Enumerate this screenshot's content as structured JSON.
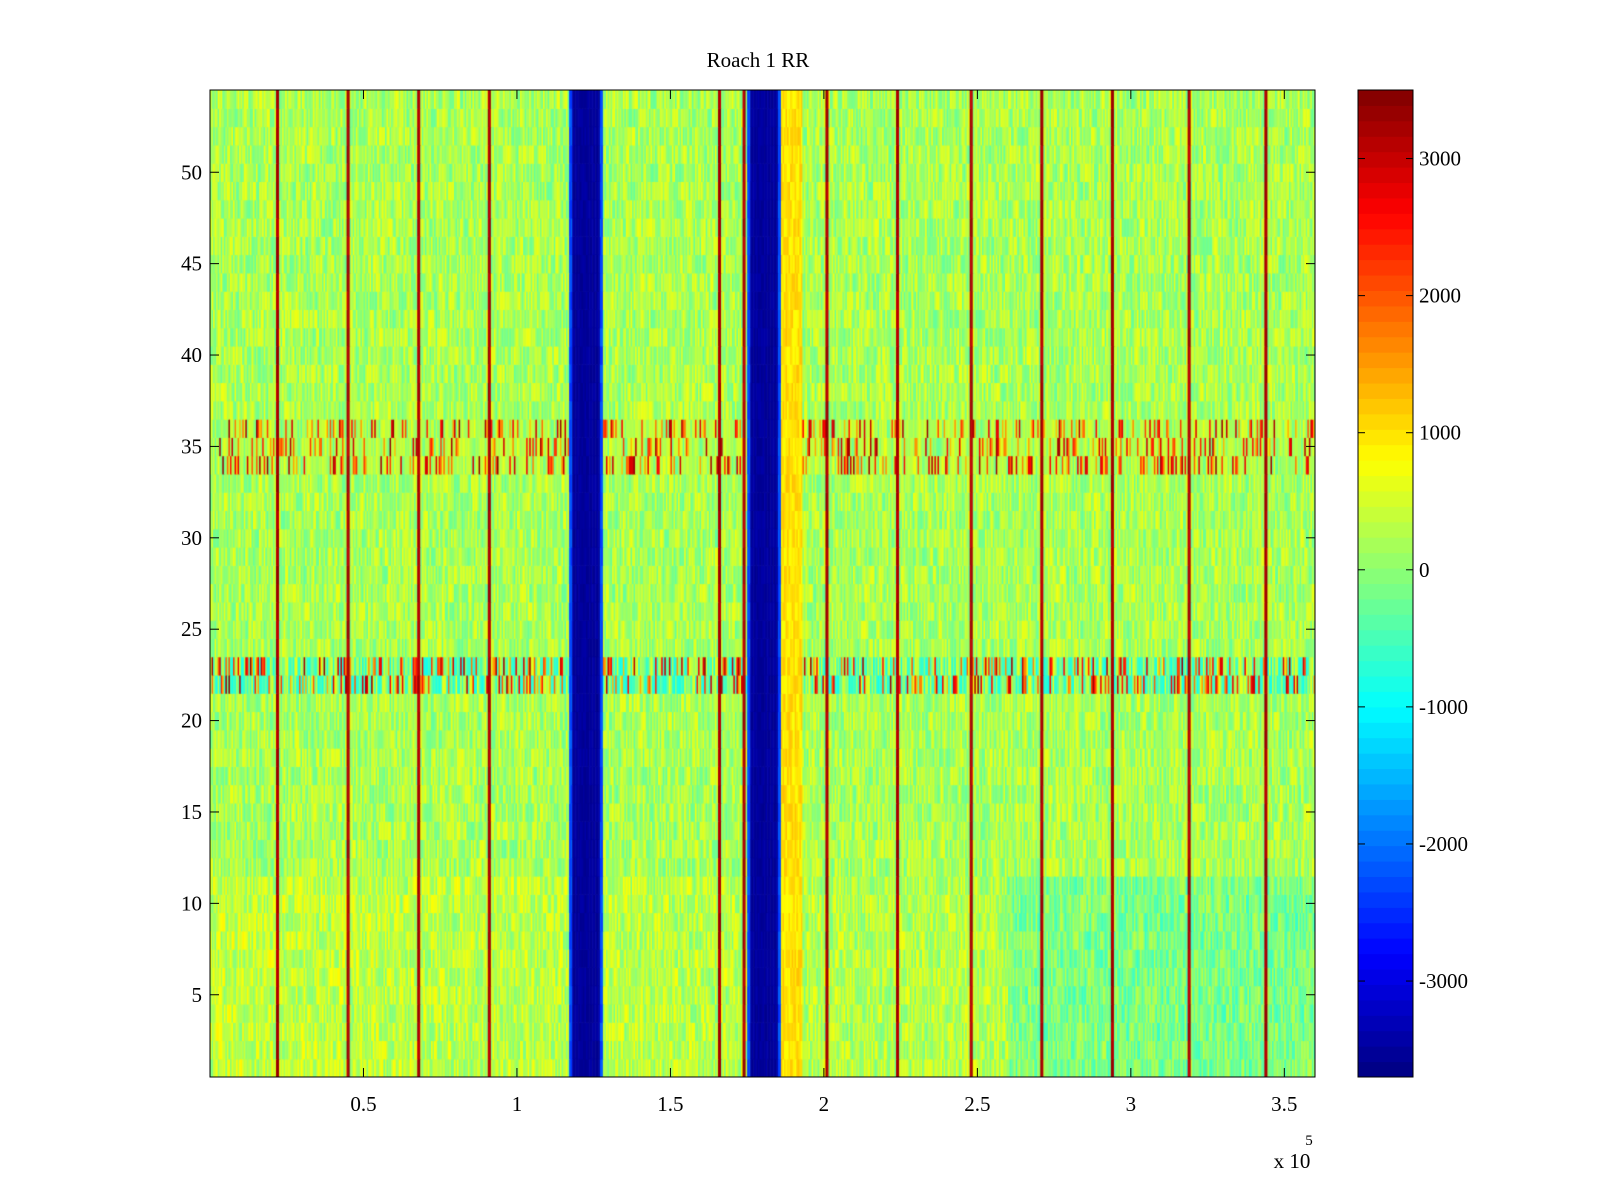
{
  "chart_data": {
    "type": "heatmap",
    "title": "Roach 1 RR",
    "xlabel": "",
    "ylabel": "",
    "x_exponent_label": "x 10",
    "x_exponent": "5",
    "xlim": [
      0,
      3.6
    ],
    "ylim": [
      0.5,
      54.5
    ],
    "x_ticks": [
      {
        "value": 0.5,
        "label": "0.5"
      },
      {
        "value": 1,
        "label": "1"
      },
      {
        "value": 1.5,
        "label": "1.5"
      },
      {
        "value": 2,
        "label": "2"
      },
      {
        "value": 2.5,
        "label": "2.5"
      },
      {
        "value": 3,
        "label": "3"
      },
      {
        "value": 3.5,
        "label": "3.5"
      }
    ],
    "y_ticks": [
      {
        "value": 5,
        "label": "5"
      },
      {
        "value": 10,
        "label": "10"
      },
      {
        "value": 15,
        "label": "15"
      },
      {
        "value": 20,
        "label": "20"
      },
      {
        "value": 25,
        "label": "25"
      },
      {
        "value": 30,
        "label": "30"
      },
      {
        "value": 35,
        "label": "35"
      },
      {
        "value": 40,
        "label": "40"
      },
      {
        "value": 45,
        "label": "45"
      },
      {
        "value": 50,
        "label": "50"
      }
    ],
    "colorbar": {
      "colormap": "jet",
      "clim": [
        -3700,
        3500
      ],
      "ticks": [
        {
          "value": 3000,
          "label": "3000"
        },
        {
          "value": 2000,
          "label": "2000"
        },
        {
          "value": 1000,
          "label": "1000"
        },
        {
          "value": 0,
          "label": "0"
        },
        {
          "value": -1000,
          "label": "-1000"
        },
        {
          "value": -2000,
          "label": "-2000"
        },
        {
          "value": -3000,
          "label": "-3000"
        }
      ]
    },
    "background_level": 200,
    "features": {
      "deep_bands": [
        {
          "x_start": 1.17,
          "x_end": 1.28,
          "value": -3600
        },
        {
          "x_start": 1.75,
          "x_end": 1.86,
          "value": -3600
        }
      ],
      "warm_band": {
        "x_start": 1.86,
        "x_end": 1.93,
        "value": 1000
      },
      "spike_lines_x": [
        0.22,
        0.45,
        0.68,
        0.91,
        1.66,
        1.74,
        2.01,
        2.24,
        2.48,
        2.71,
        2.94,
        3.19,
        3.44
      ],
      "spike_value": 3000,
      "noisy_rows": [
        {
          "y_start": 21.5,
          "y_end": 23.5,
          "mean": -700
        },
        {
          "y_start": 33.5,
          "y_end": 36.5,
          "mean": 300
        }
      ]
    }
  }
}
